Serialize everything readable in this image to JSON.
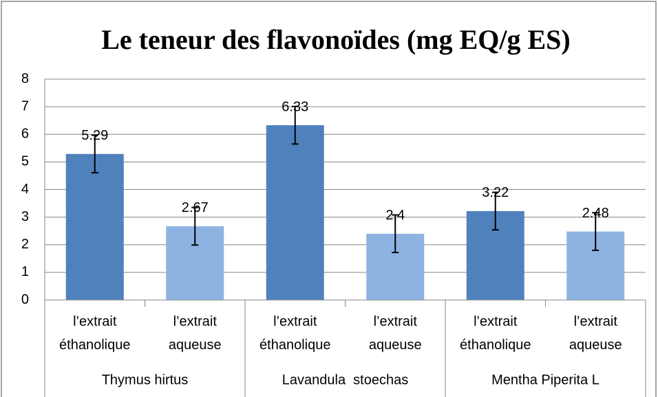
{
  "chart_data": {
    "type": "bar",
    "title": "Le teneur des flavonoïdes (mg EQ/g ES)",
    "categories": [
      [
        "l’extrait",
        "éthanolique"
      ],
      [
        "l’extrait",
        "aqueuse"
      ],
      [
        "l’extrait",
        "éthanolique"
      ],
      [
        "l’extrait",
        "aqueuse"
      ],
      [
        "l’extrait",
        "éthanolique"
      ],
      [
        "l’extrait",
        "aqueuse"
      ]
    ],
    "groups": [
      "Thymus hirtus",
      "Lavandula  stoechas",
      "Mentha Piperita L"
    ],
    "values": [
      5.29,
      2.67,
      6.33,
      2.4,
      3.22,
      2.48
    ],
    "errors": [
      0.68,
      0.68,
      0.68,
      0.68,
      0.68,
      0.68
    ],
    "colors": [
      "#4f81bd",
      "#8db3e2",
      "#4f81bd",
      "#8db3e2",
      "#4f81bd",
      "#8db3e2"
    ],
    "ylim": [
      0,
      8
    ],
    "yticks": [
      0,
      1,
      2,
      3,
      4,
      5,
      6,
      7,
      8
    ],
    "grid": true
  }
}
